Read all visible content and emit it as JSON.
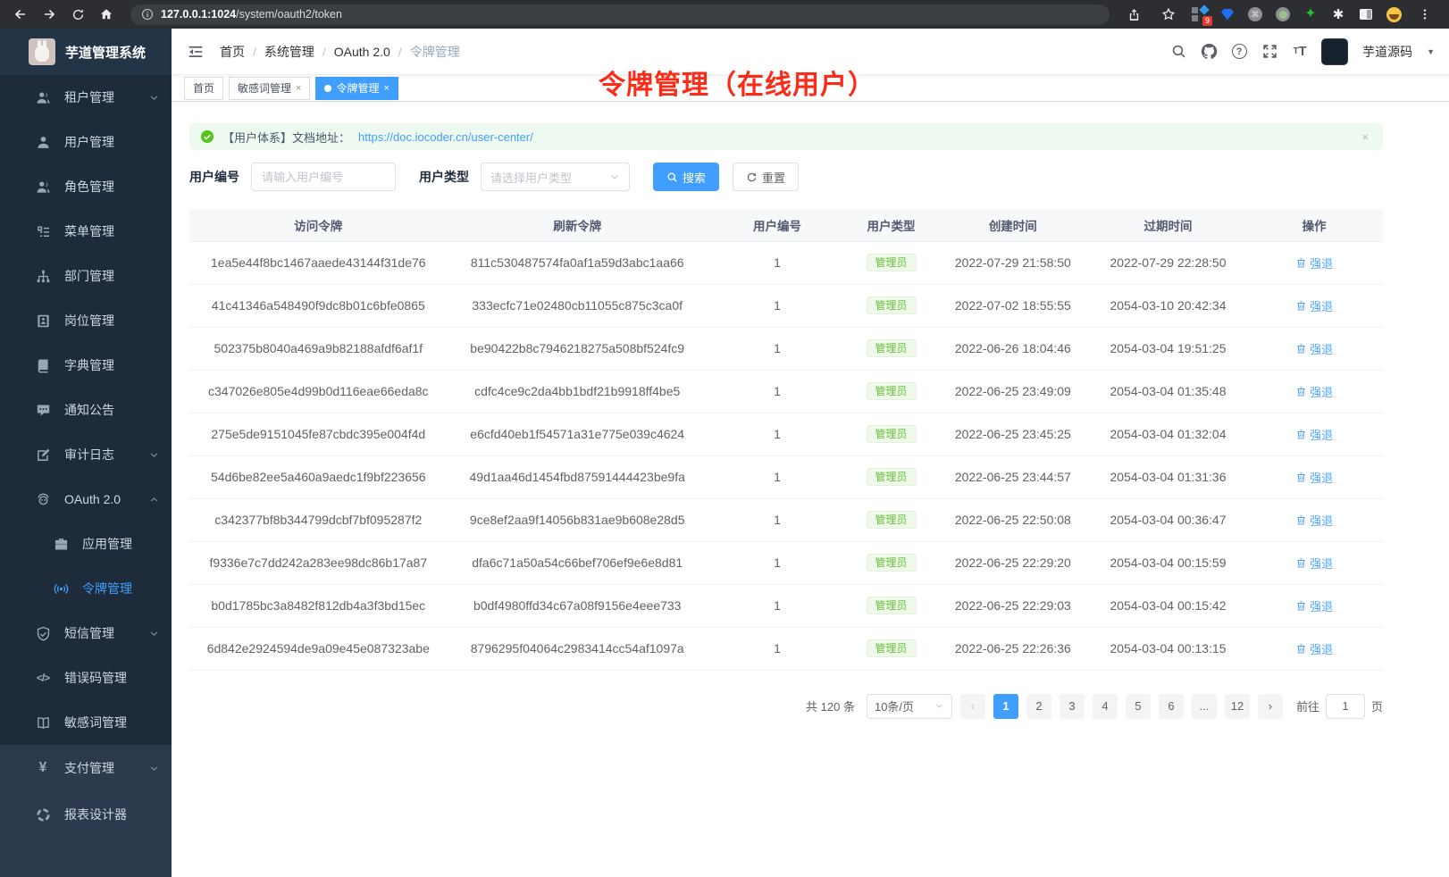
{
  "browser": {
    "url_host": "127.0.0.1:1024",
    "url_path": "/system/oauth2/token",
    "extension_badge": "9",
    "icons": [
      "back-icon",
      "forward-icon",
      "reload-icon",
      "home-icon",
      "info-icon",
      "share-icon",
      "bookmark-star-icon",
      "extension-grid-icon",
      "gem-icon",
      "command-circle-icon",
      "green-dot-icon",
      "green-star-icon",
      "white-blob-icon",
      "side-panel-icon",
      "emoji-avatar-icon",
      "menu-dots-icon"
    ]
  },
  "app": {
    "title": "芋道管理系统"
  },
  "annotation": "令牌管理（在线用户）",
  "header": {
    "breadcrumb": [
      "首页",
      "系统管理",
      "OAuth 2.0",
      "令牌管理"
    ],
    "username": "芋道源码",
    "icons": [
      "search-icon",
      "github-icon",
      "help-icon",
      "fullscreen-icon",
      "font-size-icon"
    ]
  },
  "tabs": [
    {
      "label": "首页",
      "closable": false,
      "active": false,
      "dot": false
    },
    {
      "label": "敏感词管理",
      "closable": true,
      "active": false,
      "dot": false
    },
    {
      "label": "令牌管理",
      "closable": true,
      "active": true,
      "dot": true
    }
  ],
  "sidebar": {
    "items": [
      {
        "label": "租户管理",
        "icon": "users-icon",
        "chevron": "down"
      },
      {
        "label": "用户管理",
        "icon": "user-icon"
      },
      {
        "label": "角色管理",
        "icon": "role-icon"
      },
      {
        "label": "菜单管理",
        "icon": "menu-tree-icon"
      },
      {
        "label": "部门管理",
        "icon": "dept-icon"
      },
      {
        "label": "岗位管理",
        "icon": "post-icon"
      },
      {
        "label": "字典管理",
        "icon": "dict-icon"
      },
      {
        "label": "通知公告",
        "icon": "notice-icon"
      },
      {
        "label": "审计日志",
        "icon": "audit-icon",
        "chevron": "down"
      },
      {
        "label": "OAuth 2.0",
        "icon": "oauth-icon",
        "chevron": "up",
        "children": [
          {
            "label": "应用管理",
            "icon": "app-icon"
          },
          {
            "label": "令牌管理",
            "icon": "token-icon",
            "active": true
          }
        ]
      },
      {
        "label": "短信管理",
        "icon": "shield-icon",
        "chevron": "down"
      },
      {
        "label": "错误码管理",
        "icon": "code-icon"
      },
      {
        "label": "敏感词管理",
        "icon": "open-book-icon"
      }
    ],
    "bottom_items": [
      {
        "label": "支付管理",
        "icon": "yen-icon",
        "chevron": "down"
      },
      {
        "label": "报表设计器",
        "icon": "dashed-circle-icon"
      }
    ]
  },
  "alert": {
    "text": "【用户体系】文档地址：",
    "link": "https://doc.iocoder.cn/user-center/",
    "close": "×"
  },
  "filters": {
    "user_id_label": "用户编号",
    "user_id_placeholder": "请输入用户编号",
    "user_type_label": "用户类型",
    "user_type_placeholder": "请选择用户类型",
    "search_label": "搜索",
    "reset_label": "重置"
  },
  "table": {
    "headers": [
      "访问令牌",
      "刷新令牌",
      "用户编号",
      "用户类型",
      "创建时间",
      "过期时间",
      "操作"
    ],
    "action_label": "强退",
    "rows": [
      {
        "access_token": "1ea5e44f8bc1467aaede43144f31de76",
        "refresh_token": "811c530487574fa0af1a59d3abc1aa66",
        "user_id": "1",
        "user_type": "管理员",
        "created_at": "2022-07-29 21:58:50",
        "expires_at": "2022-07-29 22:28:50"
      },
      {
        "access_token": "41c41346a548490f9dc8b01c6bfe0865",
        "refresh_token": "333ecfc71e02480cb11055c875c3ca0f",
        "user_id": "1",
        "user_type": "管理员",
        "created_at": "2022-07-02 18:55:55",
        "expires_at": "2054-03-10 20:42:34"
      },
      {
        "access_token": "502375b8040a469a9b82188afdf6af1f",
        "refresh_token": "be90422b8c7946218275a508bf524fc9",
        "user_id": "1",
        "user_type": "管理员",
        "created_at": "2022-06-26 18:04:46",
        "expires_at": "2054-03-04 19:51:25"
      },
      {
        "access_token": "c347026e805e4d99b0d116eae66eda8c",
        "refresh_token": "cdfc4ce9c2da4bb1bdf21b9918ff4be5",
        "user_id": "1",
        "user_type": "管理员",
        "created_at": "2022-06-25 23:49:09",
        "expires_at": "2054-03-04 01:35:48"
      },
      {
        "access_token": "275e5de9151045fe87cbdc395e004f4d",
        "refresh_token": "e6cfd40eb1f54571a31e775e039c4624",
        "user_id": "1",
        "user_type": "管理员",
        "created_at": "2022-06-25 23:45:25",
        "expires_at": "2054-03-04 01:32:04"
      },
      {
        "access_token": "54d6be82ee5a460a9aedc1f9bf223656",
        "refresh_token": "49d1aa46d1454fbd87591444423be9fa",
        "user_id": "1",
        "user_type": "管理员",
        "created_at": "2022-06-25 23:44:57",
        "expires_at": "2054-03-04 01:31:36"
      },
      {
        "access_token": "c342377bf8b344799dcbf7bf095287f2",
        "refresh_token": "9ce8ef2aa9f14056b831ae9b608e28d5",
        "user_id": "1",
        "user_type": "管理员",
        "created_at": "2022-06-25 22:50:08",
        "expires_at": "2054-03-04 00:36:47"
      },
      {
        "access_token": "f9336e7c7dd242a283ee98dc86b17a87",
        "refresh_token": "dfa6c71a50a54c66bef706ef9e6e8d81",
        "user_id": "1",
        "user_type": "管理员",
        "created_at": "2022-06-25 22:29:20",
        "expires_at": "2054-03-04 00:15:59"
      },
      {
        "access_token": "b0d1785bc3a8482f812db4a3f3bd15ec",
        "refresh_token": "b0df4980ffd34c67a08f9156e4eee733",
        "user_id": "1",
        "user_type": "管理员",
        "created_at": "2022-06-25 22:29:03",
        "expires_at": "2054-03-04 00:15:42"
      },
      {
        "access_token": "6d842e2924594de9a09e45e087323abe",
        "refresh_token": "8796295f04064c2983414cc54af1097a",
        "user_id": "1",
        "user_type": "管理员",
        "created_at": "2022-06-25 22:26:36",
        "expires_at": "2054-03-04 00:13:15"
      }
    ]
  },
  "pagination": {
    "total": "共 120 条",
    "page_size": "10条/页",
    "pages": [
      "1",
      "2",
      "3",
      "4",
      "5",
      "6",
      "...",
      "12"
    ],
    "active_page": "1",
    "goto_label": "前往",
    "goto_value": "1",
    "page_unit": "页"
  },
  "colors": {
    "accent_blue": "#409eff",
    "success_green": "#67c23a",
    "sidebar_dark": "#1d2b3a",
    "sidebar_light": "#2d3a4d",
    "annotation_red": "#fa2b17"
  }
}
